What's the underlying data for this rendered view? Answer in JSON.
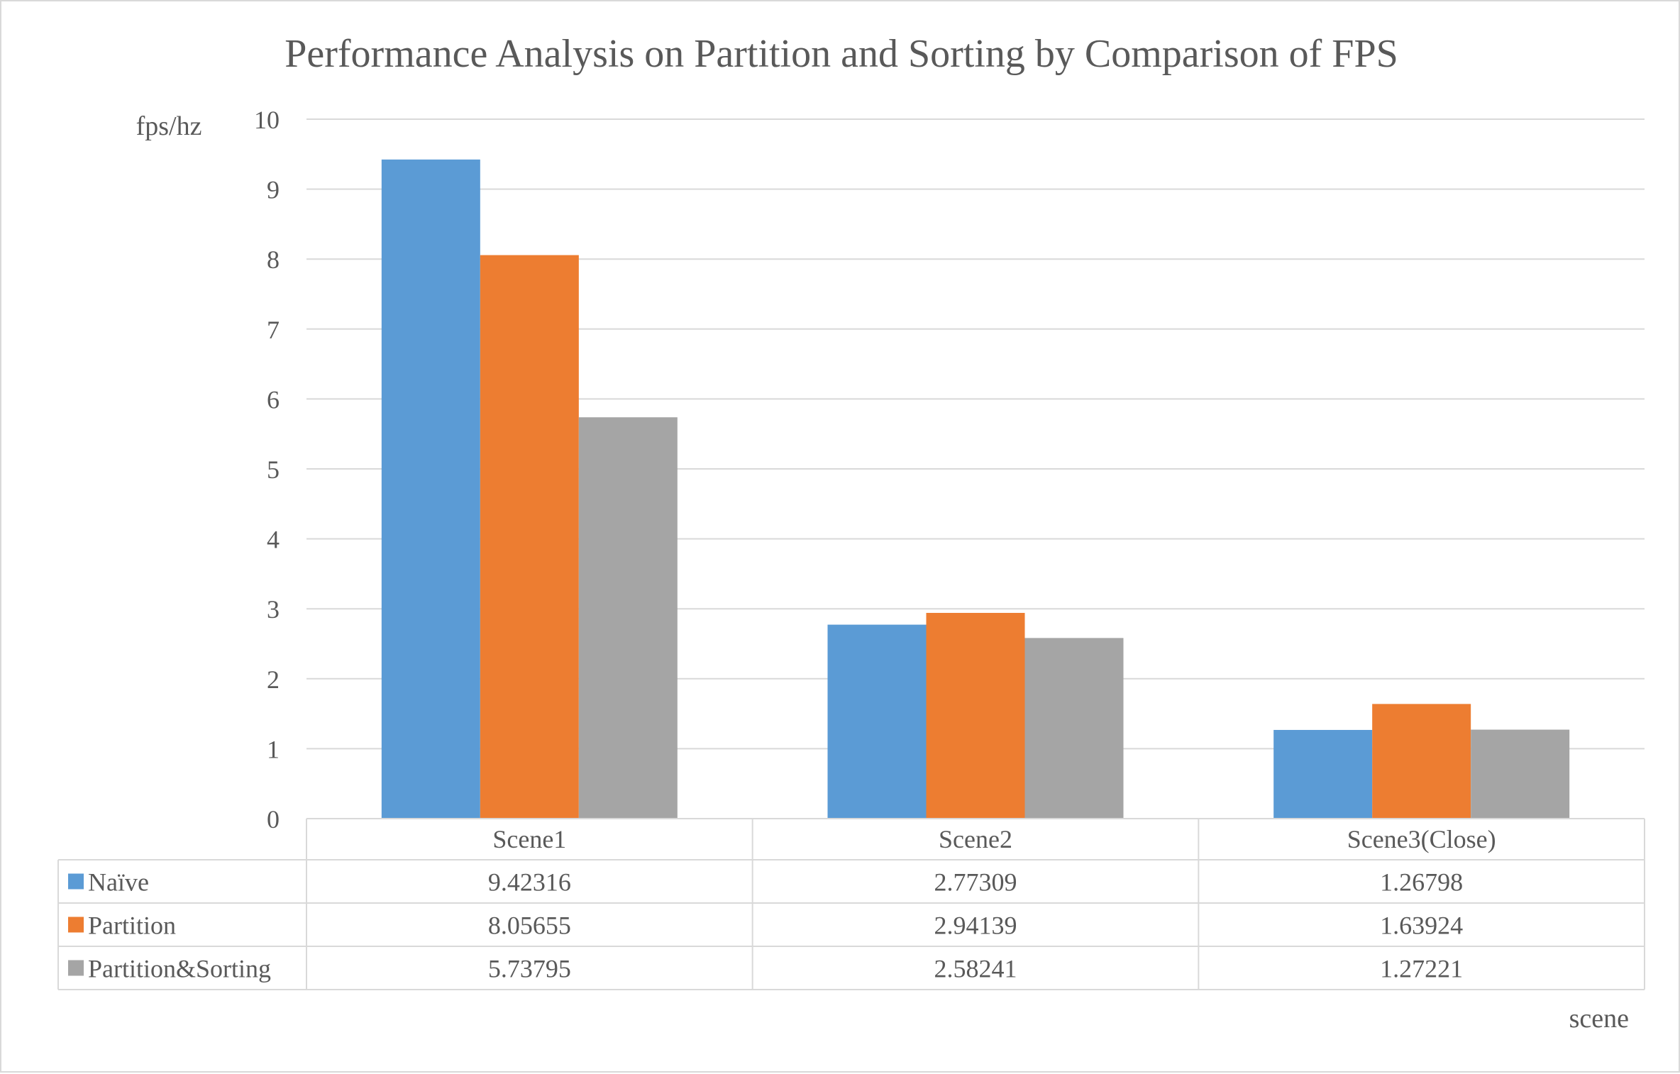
{
  "chart_data": {
    "type": "bar",
    "title": "Performance Analysis on Partition and Sorting by Comparison of FPS",
    "xlabel": "scene",
    "ylabel": "fps/hz",
    "ylim": [
      0,
      10
    ],
    "yticks": [
      0,
      1,
      2,
      3,
      4,
      5,
      6,
      7,
      8,
      9,
      10
    ],
    "grid": true,
    "legend": "data-table",
    "categories": [
      "Scene1",
      "Scene2",
      "Scene3(Close)"
    ],
    "series": [
      {
        "name": "Naïve",
        "color": "#5b9bd5",
        "values": [
          9.42316,
          2.77309,
          1.26798
        ],
        "labels": [
          "9.42316",
          "2.77309",
          "1.26798"
        ]
      },
      {
        "name": "Partition",
        "color": "#ed7d31",
        "values": [
          8.05655,
          2.94139,
          1.63924
        ],
        "labels": [
          "8.05655",
          "2.94139",
          "1.63924"
        ]
      },
      {
        "name": "Partition&Sorting",
        "color": "#a5a5a5",
        "values": [
          5.73795,
          2.58241,
          1.27221
        ],
        "labels": [
          "5.73795",
          "2.58241",
          "1.27221"
        ]
      }
    ]
  }
}
